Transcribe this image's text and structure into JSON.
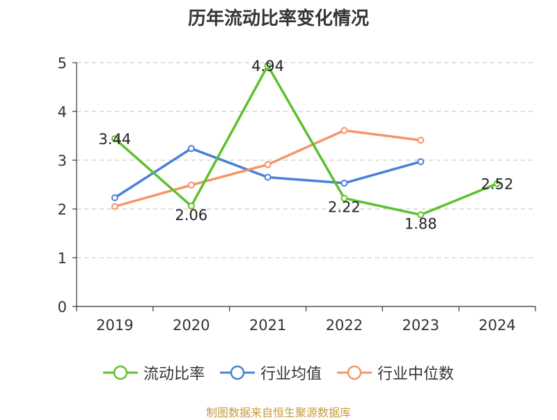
{
  "chart_data": {
    "type": "line",
    "title": "历年流动比率变化情况",
    "xlabel": "",
    "ylabel": "",
    "categories": [
      "2019",
      "2020",
      "2021",
      "2022",
      "2023",
      "2024"
    ],
    "ylim": [
      0,
      5
    ],
    "yticks": [
      "0",
      "1",
      "2",
      "3",
      "4",
      "5"
    ],
    "grid": true,
    "legend_position": "bottom",
    "series": [
      {
        "name": "流动比率",
        "color": "#5cc12c",
        "values": [
          3.44,
          2.06,
          4.94,
          2.22,
          1.88,
          2.52
        ],
        "labels": [
          "3.44",
          "2.06",
          "4.94",
          "2.22",
          "1.88",
          "2.52"
        ]
      },
      {
        "name": "行业均值",
        "color": "#4a7fd8",
        "values": [
          2.23,
          3.24,
          2.65,
          2.53,
          2.97,
          null
        ]
      },
      {
        "name": "行业中位数",
        "color": "#f59466",
        "values": [
          2.05,
          2.49,
          2.91,
          3.61,
          3.41,
          null
        ]
      }
    ]
  },
  "source": {
    "text": "制图数据来自恒生聚源数据库",
    "color": "#c89a3c"
  }
}
